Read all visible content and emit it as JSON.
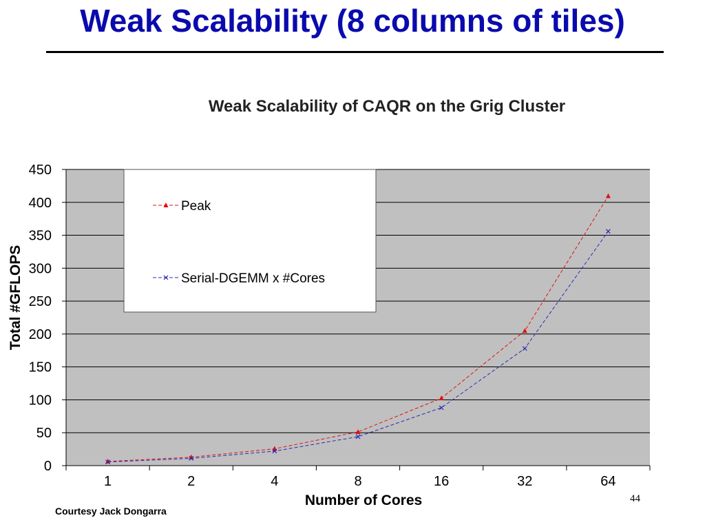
{
  "slide": {
    "title": "Weak Scalability (8 columns of  tiles)",
    "credit": "Courtesy Jack Dongarra",
    "page_number": "44"
  },
  "chart_data": {
    "type": "line",
    "title": "Weak Scalability of CAQR on the Grig Cluster",
    "xlabel": "Number of Cores",
    "ylabel": "Total #GFLOPS",
    "categories": [
      "1",
      "2",
      "4",
      "8",
      "16",
      "32",
      "64"
    ],
    "ylim": [
      0,
      450
    ],
    "yticks": [
      0,
      50,
      100,
      150,
      200,
      250,
      300,
      350,
      400,
      450
    ],
    "grid": true,
    "legend_position": "top-left",
    "series": [
      {
        "name": "Peak",
        "values": [
          6.4,
          12.8,
          25.6,
          51.2,
          102.4,
          204.8,
          409.6
        ],
        "color": "#e01010",
        "marker": "triangle"
      },
      {
        "name": "Serial-DGEMM  x #Cores",
        "values": [
          5.5,
          11,
          22,
          44,
          88,
          178,
          356
        ],
        "color": "#2a2ab8",
        "marker": "x"
      }
    ],
    "colors": {
      "plot_background": "#c0c0c0",
      "gridline": "#000000"
    }
  }
}
